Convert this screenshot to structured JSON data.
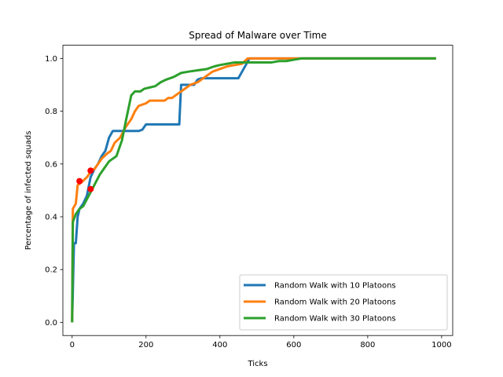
{
  "chart_data": {
    "type": "line",
    "title": "Spread of Malware over Time",
    "xlabel": "Ticks",
    "ylabel": "Percentage of infected squads",
    "xlim": [
      -25,
      1030
    ],
    "ylim": [
      -0.05,
      1.05
    ],
    "xticks": [
      0,
      200,
      400,
      600,
      800,
      1000
    ],
    "yticks": [
      0.0,
      0.2,
      0.4,
      0.6,
      0.8,
      1.0
    ],
    "xtick_labels": [
      "0",
      "200",
      "400",
      "600",
      "800",
      "1000"
    ],
    "ytick_labels": [
      "0.0",
      "0.2",
      "0.4",
      "0.6",
      "0.8",
      "1.0"
    ],
    "legend_position": "lower-right",
    "series": [
      {
        "name": "Random Walk with 10 Platoons",
        "color": "#1f77b4",
        "x": [
          0,
          5,
          10,
          15,
          20,
          30,
          40,
          50,
          60,
          70,
          80,
          90,
          100,
          110,
          120,
          130,
          180,
          190,
          200,
          290,
          295,
          330,
          340,
          350,
          450,
          460,
          470,
          480,
          985
        ],
        "y": [
          0.0,
          0.3,
          0.3,
          0.4,
          0.43,
          0.45,
          0.48,
          0.55,
          0.58,
          0.6,
          0.63,
          0.65,
          0.7,
          0.725,
          0.725,
          0.725,
          0.725,
          0.73,
          0.75,
          0.75,
          0.9,
          0.9,
          0.92,
          0.925,
          0.925,
          0.95,
          0.975,
          1.0,
          1.0
        ]
      },
      {
        "name": "Random Walk with 20 Platoons",
        "color": "#ff7f0e",
        "x": [
          0,
          2,
          10,
          15,
          25,
          40,
          55,
          60,
          70,
          80,
          95,
          105,
          115,
          130,
          145,
          160,
          170,
          180,
          200,
          210,
          250,
          260,
          270,
          280,
          290,
          300,
          320,
          340,
          360,
          380,
          400,
          420,
          440,
          460,
          475,
          500,
          520,
          540,
          560,
          580,
          600,
          985
        ],
        "y": [
          0.0,
          0.43,
          0.45,
          0.52,
          0.53,
          0.55,
          0.58,
          0.58,
          0.6,
          0.62,
          0.64,
          0.65,
          0.68,
          0.7,
          0.74,
          0.77,
          0.8,
          0.82,
          0.83,
          0.84,
          0.84,
          0.85,
          0.85,
          0.86,
          0.87,
          0.88,
          0.9,
          0.91,
          0.93,
          0.95,
          0.96,
          0.97,
          0.975,
          0.98,
          1.0,
          1.0,
          1.0,
          1.0,
          1.0,
          1.0,
          1.0,
          1.0
        ]
      },
      {
        "name": "Random Walk with 30 Platoons",
        "color": "#2ca02c",
        "x": [
          0,
          2,
          10,
          20,
          30,
          45,
          60,
          75,
          90,
          100,
          110,
          120,
          135,
          145,
          160,
          170,
          185,
          195,
          210,
          225,
          240,
          255,
          275,
          295,
          315,
          340,
          365,
          385,
          400,
          420,
          440,
          500,
          520,
          540,
          560,
          580,
          600,
          620,
          640,
          985
        ],
        "y": [
          0.0,
          0.38,
          0.41,
          0.43,
          0.44,
          0.48,
          0.52,
          0.56,
          0.59,
          0.61,
          0.62,
          0.63,
          0.69,
          0.76,
          0.86,
          0.875,
          0.875,
          0.885,
          0.89,
          0.895,
          0.91,
          0.92,
          0.93,
          0.945,
          0.95,
          0.955,
          0.96,
          0.97,
          0.975,
          0.98,
          0.985,
          0.985,
          0.985,
          0.985,
          0.99,
          0.99,
          0.995,
          1.0,
          1.0,
          1.0
        ]
      }
    ],
    "markers": {
      "color": "#ff0000",
      "points": [
        {
          "x": 20,
          "y": 0.535
        },
        {
          "x": 50,
          "y": 0.505
        },
        {
          "x": 50,
          "y": 0.575
        }
      ]
    }
  }
}
